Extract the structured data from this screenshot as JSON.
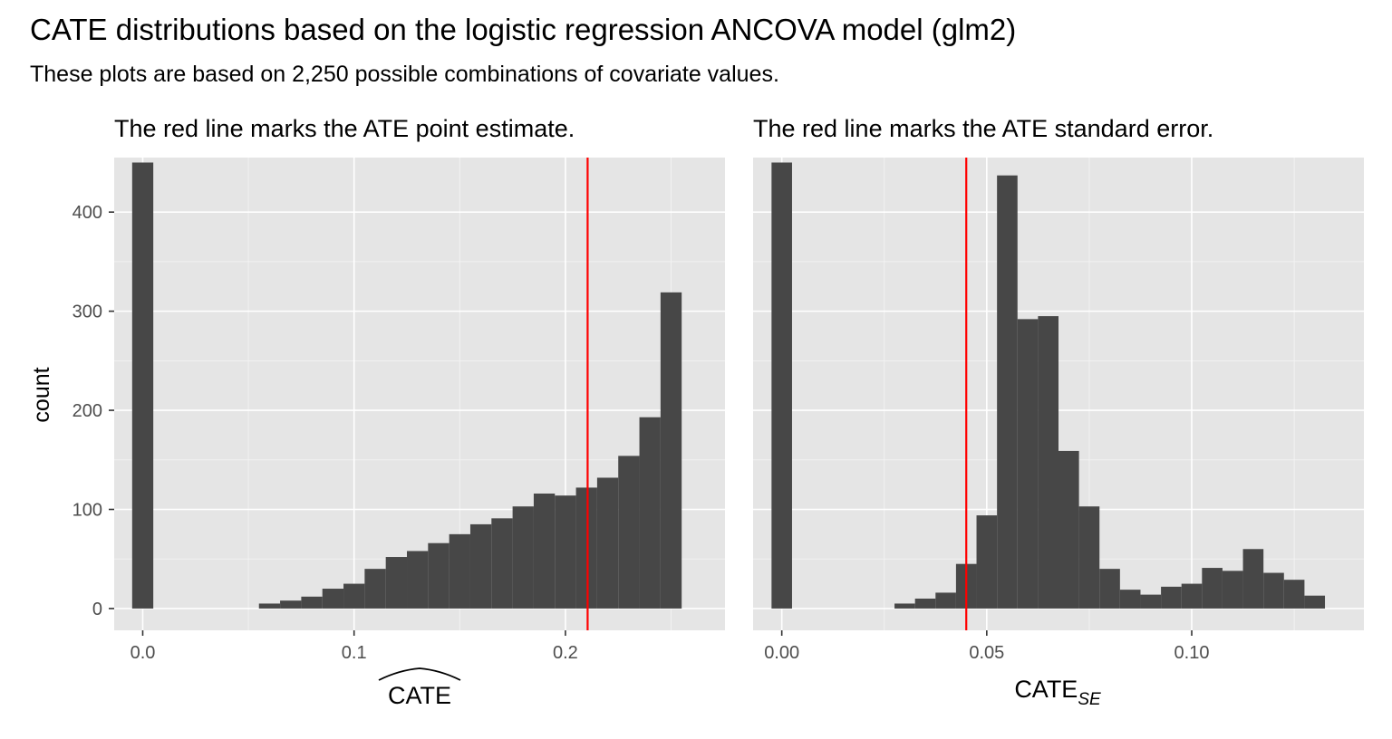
{
  "title": "CATE distributions based on the logistic regression ANCOVA model (glm2)",
  "subtitle": "These plots are based on 2,250 possible combinations of covariate values.",
  "colors": {
    "bar": "#474747",
    "panel_bg": "#e5e5e5",
    "ref_line": "#ff0000"
  },
  "chart_data": [
    {
      "type": "bar",
      "panel_title": "The red line marks the ATE point estimate.",
      "xlabel": "CATE",
      "xlabel_style": "widehat",
      "ylabel": "count",
      "xlim": [
        -0.0135,
        0.2755
      ],
      "ylim": [
        -22,
        455
      ],
      "x_ticks": [
        0.0,
        0.1,
        0.2
      ],
      "x_tick_labels": [
        "0.0",
        "0.1",
        "0.2"
      ],
      "y_ticks": [
        0,
        100,
        200,
        300,
        400
      ],
      "y_tick_labels": [
        "0",
        "100",
        "200",
        "300",
        "400"
      ],
      "bin_width": 0.01,
      "bins": [
        {
          "x": 0.0,
          "count": 450
        },
        {
          "x": 0.06,
          "count": 5
        },
        {
          "x": 0.07,
          "count": 8
        },
        {
          "x": 0.08,
          "count": 12
        },
        {
          "x": 0.09,
          "count": 20
        },
        {
          "x": 0.1,
          "count": 25
        },
        {
          "x": 0.11,
          "count": 40
        },
        {
          "x": 0.12,
          "count": 52
        },
        {
          "x": 0.13,
          "count": 58
        },
        {
          "x": 0.14,
          "count": 66
        },
        {
          "x": 0.15,
          "count": 75
        },
        {
          "x": 0.16,
          "count": 85
        },
        {
          "x": 0.17,
          "count": 91
        },
        {
          "x": 0.18,
          "count": 103
        },
        {
          "x": 0.19,
          "count": 116
        },
        {
          "x": 0.2,
          "count": 114
        },
        {
          "x": 0.21,
          "count": 122
        },
        {
          "x": 0.22,
          "count": 132
        },
        {
          "x": 0.23,
          "count": 154
        },
        {
          "x": 0.24,
          "count": 193
        },
        {
          "x": 0.25,
          "count": 319
        }
      ],
      "ref_line_x": 0.2105
    },
    {
      "type": "bar",
      "panel_title": "The red line marks the ATE standard error.",
      "xlabel": "CATE",
      "xlabel_subscript": "SE",
      "ylabel": "",
      "xlim": [
        -0.007,
        0.142
      ],
      "ylim": [
        -22,
        455
      ],
      "x_ticks": [
        0.0,
        0.05,
        0.1
      ],
      "x_tick_labels": [
        "0.00",
        "0.05",
        "0.10"
      ],
      "y_ticks": [
        0,
        100,
        200,
        300,
        400
      ],
      "y_tick_labels": [
        "",
        "",
        "",
        "",
        ""
      ],
      "bin_width": 0.005,
      "bins": [
        {
          "x": 0.0,
          "count": 450
        },
        {
          "x": 0.03,
          "count": 5
        },
        {
          "x": 0.035,
          "count": 10
        },
        {
          "x": 0.04,
          "count": 16
        },
        {
          "x": 0.045,
          "count": 45
        },
        {
          "x": 0.05,
          "count": 94
        },
        {
          "x": 0.055,
          "count": 437
        },
        {
          "x": 0.06,
          "count": 292
        },
        {
          "x": 0.065,
          "count": 295
        },
        {
          "x": 0.07,
          "count": 159
        },
        {
          "x": 0.075,
          "count": 103
        },
        {
          "x": 0.08,
          "count": 40
        },
        {
          "x": 0.085,
          "count": 19
        },
        {
          "x": 0.09,
          "count": 14
        },
        {
          "x": 0.095,
          "count": 22
        },
        {
          "x": 0.1,
          "count": 25
        },
        {
          "x": 0.105,
          "count": 41
        },
        {
          "x": 0.11,
          "count": 38
        },
        {
          "x": 0.115,
          "count": 60
        },
        {
          "x": 0.12,
          "count": 36
        },
        {
          "x": 0.125,
          "count": 29
        },
        {
          "x": 0.13,
          "count": 13
        }
      ],
      "ref_line_x": 0.045
    }
  ]
}
